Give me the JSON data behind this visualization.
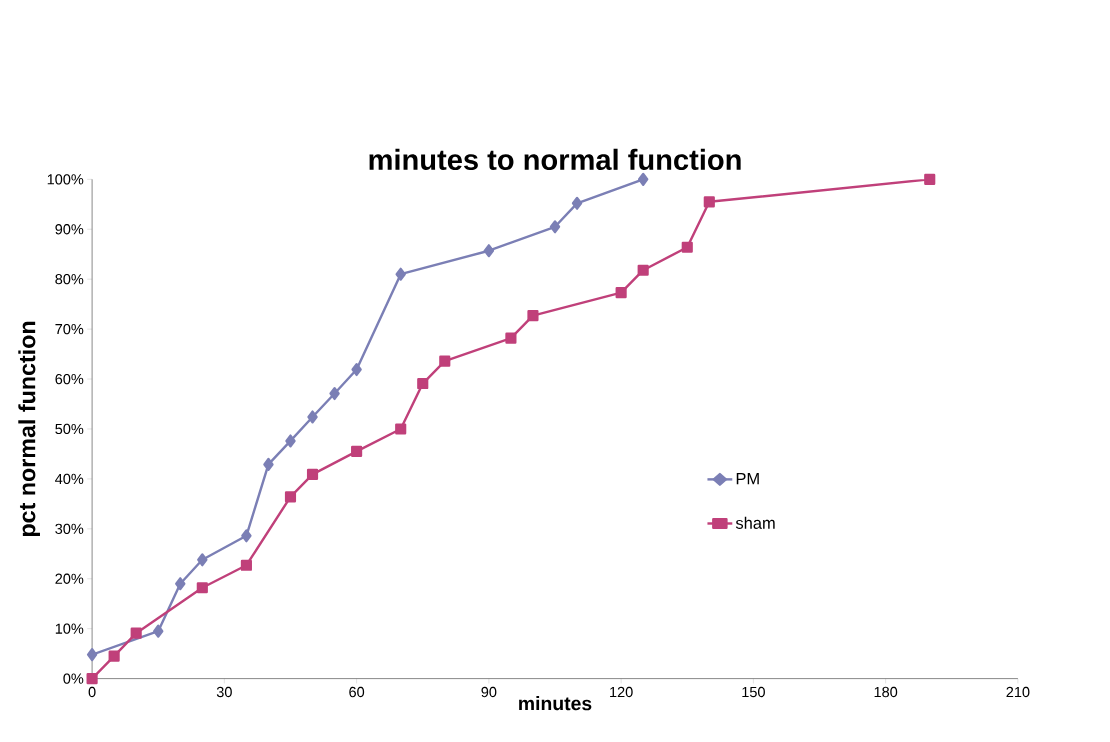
{
  "chart_data": {
    "type": "line",
    "title": "minutes to normal function",
    "xlabel": "minutes",
    "ylabel": "pct normal function",
    "xlim": [
      0,
      210
    ],
    "xticks": [
      0,
      30,
      60,
      90,
      120,
      150,
      180,
      210
    ],
    "ylim": [
      0,
      100
    ],
    "yticks": [
      {
        "value": 0,
        "label": "0%"
      },
      {
        "value": 10,
        "label": "10%"
      },
      {
        "value": 20,
        "label": "20%"
      },
      {
        "value": 30,
        "label": "30%"
      },
      {
        "value": 40,
        "label": "40%"
      },
      {
        "value": 50,
        "label": "50%"
      },
      {
        "value": 60,
        "label": "60%"
      },
      {
        "value": 70,
        "label": "70%"
      },
      {
        "value": 80,
        "label": "80%"
      },
      {
        "value": 90,
        "label": "90%"
      },
      {
        "value": 100,
        "label": "100%"
      }
    ],
    "grid": false,
    "legend": "right",
    "series": [
      {
        "name": "PM",
        "color": "#7b7fb5",
        "marker": "diamond",
        "x": [
          0,
          15,
          20,
          25,
          35,
          40,
          45,
          50,
          55,
          60,
          70,
          90,
          105,
          110,
          125
        ],
        "values": [
          4.8,
          9.5,
          19.0,
          23.8,
          28.6,
          42.9,
          47.6,
          52.4,
          57.1,
          61.9,
          81.0,
          85.7,
          90.5,
          95.2,
          100
        ]
      },
      {
        "name": "sham",
        "color": "#c0407a",
        "marker": "square",
        "x": [
          0,
          5,
          10,
          25,
          35,
          45,
          50,
          60,
          70,
          75,
          80,
          95,
          100,
          120,
          125,
          135,
          140,
          190
        ],
        "values": [
          0,
          4.5,
          9.1,
          18.2,
          22.7,
          36.4,
          40.9,
          45.5,
          50.0,
          59.1,
          63.6,
          68.2,
          72.7,
          77.3,
          81.8,
          86.4,
          95.5,
          100
        ]
      }
    ]
  }
}
